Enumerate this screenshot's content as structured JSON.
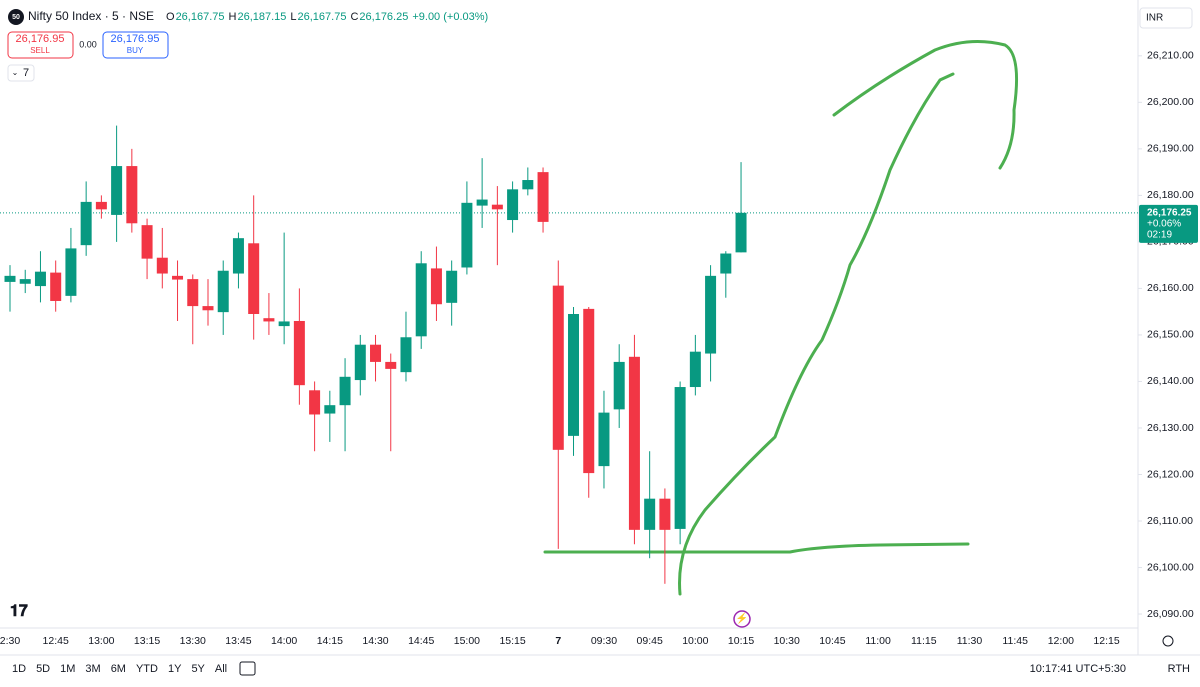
{
  "header": {
    "symbol": "Nifty 50 Index · 5 · NSE",
    "badge": "50",
    "ohlc": [
      {
        "label": "O",
        "value": "26,167.75"
      },
      {
        "label": "H",
        "value": "26,187.15"
      },
      {
        "label": "L",
        "value": "26,167.75"
      },
      {
        "label": "C",
        "value": "26,176.25"
      }
    ],
    "change": "+9.00 (+0.03%)",
    "sell_price": "26,176.95",
    "sell_label": "SELL",
    "spread": "0.00",
    "buy_price": "26,176.95",
    "buy_label": "BUY",
    "indicator_count": "7",
    "currency": "INR"
  },
  "chart_data": {
    "type": "candlestick",
    "up_color": "#089981",
    "down_color": "#f23645",
    "categories": [
      "2:30",
      null,
      null,
      "12:45",
      null,
      null,
      "13:00",
      null,
      null,
      "13:15",
      null,
      null,
      "13:30",
      null,
      null,
      "13:45",
      null,
      null,
      "14:00",
      null,
      null,
      "14:15",
      null,
      null,
      "14:30",
      null,
      null,
      "14:45",
      null,
      null,
      "15:00",
      null,
      null,
      "15:15",
      null,
      null,
      "7",
      null,
      null,
      "09:30",
      null,
      null,
      "09:45",
      null,
      null,
      "10:00",
      null,
      null,
      "10:15",
      null,
      null,
      "10:30",
      null,
      null,
      "10:45",
      null,
      null,
      "11:00",
      null,
      null,
      "11:15",
      null,
      null,
      "11:30",
      null,
      null,
      "11:45",
      null,
      null,
      "12:00",
      null,
      null,
      "12:15"
    ],
    "open": [
      26161.4,
      26161,
      26160.5,
      26163.4,
      26158.4,
      26169.3,
      26178.6,
      26175.8,
      26186.3,
      26173.6,
      26166.6,
      26162.7,
      26162,
      26156.2,
      26154.9,
      26163.2,
      26169.7,
      26153.6,
      26151.9,
      26153,
      26138.1,
      26133.1,
      26134.9,
      26140.3,
      26147.9,
      26144.2,
      26142,
      26149.7,
      26164.3,
      26156.9,
      26164.5,
      26177.8,
      26178,
      26174.7,
      26181.3,
      26185,
      26160.6,
      26128.3,
      26155.6,
      26121.8,
      26134,
      26145.3,
      26108.1,
      26114.8,
      26108.3,
      26138.8,
      26146,
      26163.2,
      26167.75,
      null,
      null,
      null,
      null,
      null,
      null,
      null,
      null,
      null,
      null,
      null,
      null,
      null,
      null,
      null,
      null,
      null,
      null,
      null,
      null,
      null,
      null,
      null,
      null
    ],
    "high": [
      26165,
      26164,
      26168,
      26166,
      26173,
      26183,
      26180,
      26195,
      26190,
      26175,
      26173,
      26166,
      26163,
      26162,
      26166,
      26172,
      26180,
      26159,
      26172,
      26160,
      26140,
      26138,
      26145,
      26150,
      26150,
      26146,
      26155,
      26168,
      26169,
      26166,
      26183,
      26188,
      26182,
      26183,
      26186,
      26186,
      26166,
      26156,
      26156,
      26138,
      26148,
      26150,
      26125,
      26117,
      26140,
      26150,
      26165,
      26168,
      26187.15,
      null,
      null,
      null,
      null,
      null,
      null,
      null,
      null,
      null,
      null,
      null,
      null,
      null,
      null,
      null,
      null,
      null,
      null,
      null,
      null,
      null,
      null,
      null,
      null
    ],
    "low": [
      26155,
      26159,
      26157,
      26155,
      26157,
      26167,
      26175,
      26170,
      26172,
      26162,
      26160,
      26153,
      26148,
      26152,
      26150,
      26160,
      26149,
      26150,
      26148,
      26135,
      26125,
      26127,
      26125,
      26137,
      26140,
      26125,
      26140,
      26147,
      26153,
      26152,
      26163,
      26173,
      26165,
      26172,
      26180,
      26172,
      26104,
      26124,
      26115,
      26117,
      26130,
      26105,
      26102,
      26096.5,
      26105,
      26137,
      26140,
      26158,
      26167.75,
      null,
      null,
      null,
      null,
      null,
      null,
      null,
      null,
      null,
      null,
      null,
      null,
      null,
      null,
      null,
      null,
      null,
      null,
      null,
      null,
      null,
      null,
      null,
      null
    ],
    "close": [
      26162.7,
      26162,
      26163.6,
      26157.3,
      26168.6,
      26178.6,
      26177,
      26186.3,
      26174,
      26166.4,
      26163.2,
      26161.9,
      26156.2,
      26155.3,
      26163.8,
      26170.8,
      26154.5,
      26152.9,
      26152.9,
      26139.2,
      26132.9,
      26134.9,
      26141,
      26147.9,
      26144.2,
      26142.7,
      26149.5,
      26165.4,
      26156.6,
      26163.8,
      26178.4,
      26179.1,
      26177,
      26181.3,
      26183.3,
      26174.3,
      26125.3,
      26154.5,
      26120.3,
      26133.3,
      26144.2,
      26108.1,
      26114.8,
      26108.1,
      26138.8,
      26146.4,
      26162.7,
      26167.5,
      26176.25,
      null,
      null,
      null,
      null,
      null,
      null,
      null,
      null,
      null,
      null,
      null,
      null,
      null,
      null,
      null,
      null,
      null,
      null,
      null,
      null,
      null,
      null,
      null,
      null
    ],
    "ylim": [
      26087,
      26222
    ],
    "yticks": [
      {
        "value": 26090,
        "label": "26,090.00"
      },
      {
        "value": 26100,
        "label": "26,100.00"
      },
      {
        "value": 26110,
        "label": "26,110.00"
      },
      {
        "value": 26120,
        "label": "26,120.00"
      },
      {
        "value": 26130,
        "label": "26,130.00"
      },
      {
        "value": 26140,
        "label": "26,140.00"
      },
      {
        "value": 26150,
        "label": "26,150.00"
      },
      {
        "value": 26160,
        "label": "26,160.00"
      },
      {
        "value": 26170,
        "label": "26,170.00"
      },
      {
        "value": 26180,
        "label": "26,180.00"
      },
      {
        "value": 26190,
        "label": "26,190.00"
      },
      {
        "value": 26200,
        "label": "26,200.00"
      },
      {
        "value": 26210,
        "label": "26,210.00"
      }
    ],
    "last_price": {
      "value": 26176.25,
      "label": "26,176.25"
    },
    "last_change": "+0.06%",
    "countdown": "02:19"
  },
  "footer": {
    "ranges": [
      "1D",
      "5D",
      "1M",
      "3M",
      "6M",
      "YTD",
      "1Y",
      "5Y",
      "All"
    ],
    "clock": "10:17:41 UTC+5:30",
    "session": "RTH"
  }
}
